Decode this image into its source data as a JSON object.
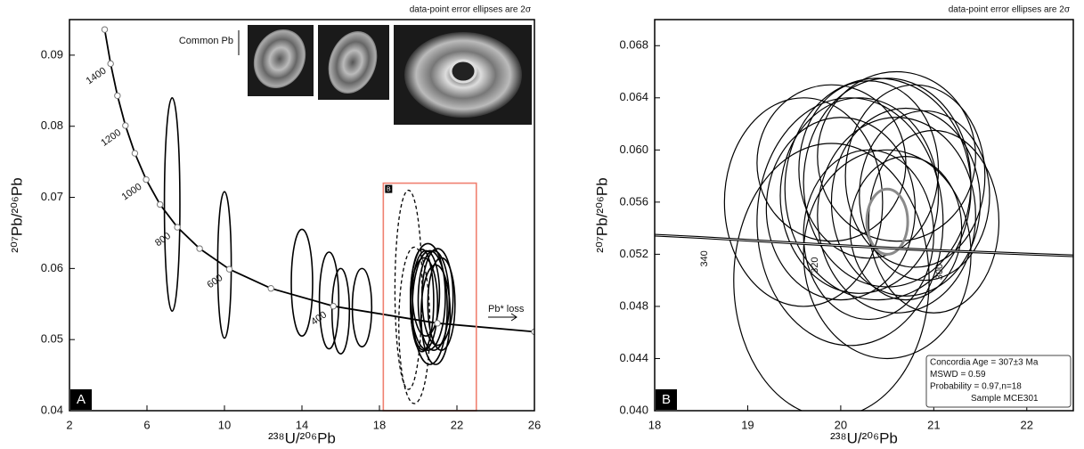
{
  "chart_data": [
    {
      "type": "ellipse",
      "note": "data-point error ellipses are 2σ",
      "x_label": "²³⁸U/²⁰⁶Pb",
      "y_label": "²⁰⁷Pb/²⁰⁶Pb",
      "panel_label": "A",
      "xlim": [
        2,
        26
      ],
      "ylim": [
        0.04,
        0.095
      ],
      "xticks": [
        2,
        6,
        10,
        14,
        18,
        22,
        26
      ],
      "yticks": [
        0.04,
        0.05,
        0.06,
        0.07,
        0.08,
        0.09
      ],
      "concordia": {
        "markers": true,
        "x": [
          3.817,
          4.123,
          4.476,
          4.888,
          5.375,
          5.959,
          6.674,
          7.568,
          8.718,
          10.252,
          12.4,
          15.62,
          20.991,
          26
        ],
        "y": [
          0.0936,
          0.0888,
          0.0843,
          0.0801,
          0.0762,
          0.0725,
          0.069,
          0.0658,
          0.0628,
          0.0599,
          0.0572,
          0.0547,
          0.0523,
          0.0511
        ],
        "labels": [
          null,
          "1400",
          null,
          "1200",
          null,
          "1000",
          null,
          "800",
          null,
          "600",
          null,
          "400",
          null,
          null
        ]
      },
      "ellipses": [
        {
          "dashed": false,
          "color": "#000000",
          "line_width": 1.6,
          "cx": [
            7.3,
            10.0,
            14.0,
            15.4,
            16.0,
            17.1,
            20.5,
            20.8,
            20.3,
            21.0,
            20.6,
            20.4,
            21.2,
            20.9,
            20.2
          ],
          "cy": [
            0.069,
            0.0605,
            0.058,
            0.0555,
            0.054,
            0.0545,
            0.056,
            0.0555,
            0.055,
            0.056,
            0.0545,
            0.0565,
            0.055,
            0.0535,
            0.0555
          ],
          "rx": [
            0.4,
            0.35,
            0.55,
            0.5,
            0.45,
            0.5,
            0.9,
            0.8,
            0.7,
            0.8,
            0.9,
            0.7,
            0.7,
            0.75,
            0.6
          ],
          "ry": [
            0.015,
            0.0103,
            0.0075,
            0.0068,
            0.006,
            0.0055,
            0.0075,
            0.007,
            0.0065,
            0.0068,
            0.008,
            0.006,
            0.0065,
            0.007,
            0.0072
          ]
        },
        {
          "dashed": true,
          "color": "#000000",
          "line_width": 1.3,
          "cx": [
            19.5,
            19.8
          ],
          "cy": [
            0.057,
            0.052
          ],
          "rx": [
            0.7,
            0.8
          ],
          "ry": [
            0.014,
            0.011
          ]
        }
      ],
      "zoom_box": {
        "x": [
          18.2,
          23
        ],
        "y": [
          0.04,
          0.072
        ],
        "color": "#f08070",
        "label": "B"
      },
      "annotations": {
        "common_pb": "Common Pb",
        "pb_loss": "Pb* loss"
      }
    },
    {
      "type": "ellipse",
      "note": "data-point error ellipses are 2σ",
      "x_label": "²³⁸U/²⁰⁶Pb",
      "y_label": "²⁰⁷Pb/²⁰⁶Pb",
      "panel_label": "B",
      "xlim": [
        18,
        22.5
      ],
      "ylim": [
        0.04,
        0.07
      ],
      "xticks": [
        18,
        19,
        20,
        21,
        22
      ],
      "yticks": [
        {
          "value": 0.04,
          "label": "0.040"
        },
        0.044,
        0.048,
        0.052,
        0.056,
        {
          "value": 0.06,
          "label": "0.060"
        },
        0.064,
        0.068
      ],
      "concordia": {
        "markers": false,
        "x": [
          18,
          18.46,
          19.65,
          20.99,
          22.5
        ],
        "y": [
          0.05346,
          0.0533,
          0.0528,
          0.0523,
          0.05188
        ],
        "labels": [
          null,
          "340",
          "320",
          "300",
          null
        ]
      },
      "ellipses": [
        {
          "dashed": false,
          "color": "#000000",
          "line_width": 1.2,
          "cx": [
            20.2,
            20.5,
            20.0,
            20.7,
            20.3,
            20.9,
            20.1,
            20.6,
            20.4,
            19.9,
            20.8,
            20.3,
            20.6,
            19.6,
            21.0,
            20.5,
            19.9,
            20.7
          ],
          "cy": [
            0.0565,
            0.0575,
            0.0555,
            0.056,
            0.0585,
            0.0565,
            0.0545,
            0.055,
            0.057,
            0.059,
            0.058,
            0.0535,
            0.0595,
            0.056,
            0.0545,
            0.052,
            0.05,
            0.054
          ],
          "rx": [
            0.85,
            0.9,
            0.8,
            0.8,
            0.75,
            0.7,
            1.0,
            0.85,
            1.0,
            0.8,
            0.75,
            0.7,
            0.85,
            0.85,
            0.7,
            0.9,
            1.05,
            0.6
          ],
          "ry": [
            0.0075,
            0.008,
            0.007,
            0.0072,
            0.0068,
            0.0065,
            0.0095,
            0.0075,
            0.0085,
            0.006,
            0.007,
            0.0065,
            0.0065,
            0.008,
            0.007,
            0.008,
            0.0105,
            0.0055
          ]
        },
        {
          "dashed": false,
          "color": "#8a8a8a",
          "line_width": 3,
          "cx": [
            20.5
          ],
          "cy": [
            0.0545
          ],
          "rx": [
            0.22
          ],
          "ry": [
            0.0025
          ]
        }
      ],
      "info_box": [
        "Concordia Age = 307±3 Ma",
        "MSWD = 0.59",
        "Probability = 0.97,n=18",
        "Sample MCE301"
      ]
    }
  ]
}
